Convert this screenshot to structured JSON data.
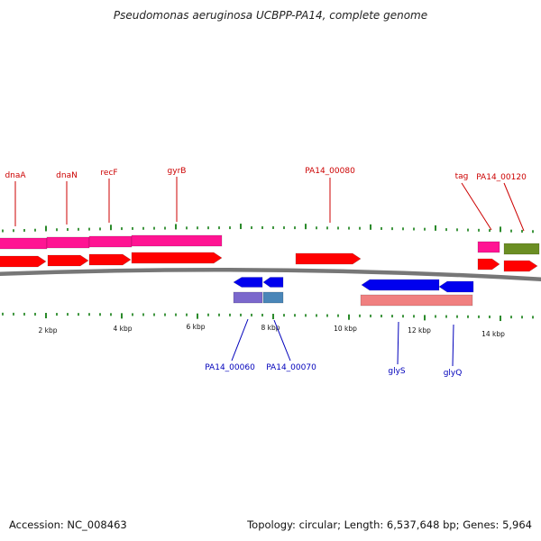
{
  "title": "Pseudomonas aeruginosa UCBPP-PA14, complete genome",
  "footer": {
    "accession": "Accession: NC_008463",
    "summary": "Topology: circular; Length: 6,537,648 bp; Genes: 5,964"
  },
  "colors": {
    "forward_label": "#cc0000",
    "reverse_label": "#0000bb",
    "forward_cds": "#ff0000",
    "reverse_cds": "#0000ee",
    "gene_magenta": "#ff1493",
    "gene_olive": "#6b8e23",
    "gene_purple": "#7b68cc",
    "gene_steel": "#4a86b8",
    "gene_salmon": "#f08080",
    "tick": "#2a8a2a",
    "backbone": "#777777"
  },
  "scale": {
    "unit": "kbp",
    "labels": [
      "2 kbp",
      "4 kbp",
      "6 kbp",
      "8 kbp",
      "10 kbp",
      "12 kbp",
      "14 kbp"
    ]
  },
  "genes": [
    {
      "label": "dnaA",
      "strand": "+"
    },
    {
      "label": "dnaN",
      "strand": "+"
    },
    {
      "label": "recF",
      "strand": "+"
    },
    {
      "label": "gyrB",
      "strand": "+"
    },
    {
      "label": "PA14_00080",
      "strand": "+"
    },
    {
      "label": "tag",
      "strand": "+"
    },
    {
      "label": "PA14_00120",
      "strand": "+"
    },
    {
      "label": "PA14_00060",
      "strand": "-"
    },
    {
      "label": "PA14_00070",
      "strand": "-"
    },
    {
      "label": "glyS",
      "strand": "-"
    },
    {
      "label": "glyQ",
      "strand": "-"
    }
  ]
}
